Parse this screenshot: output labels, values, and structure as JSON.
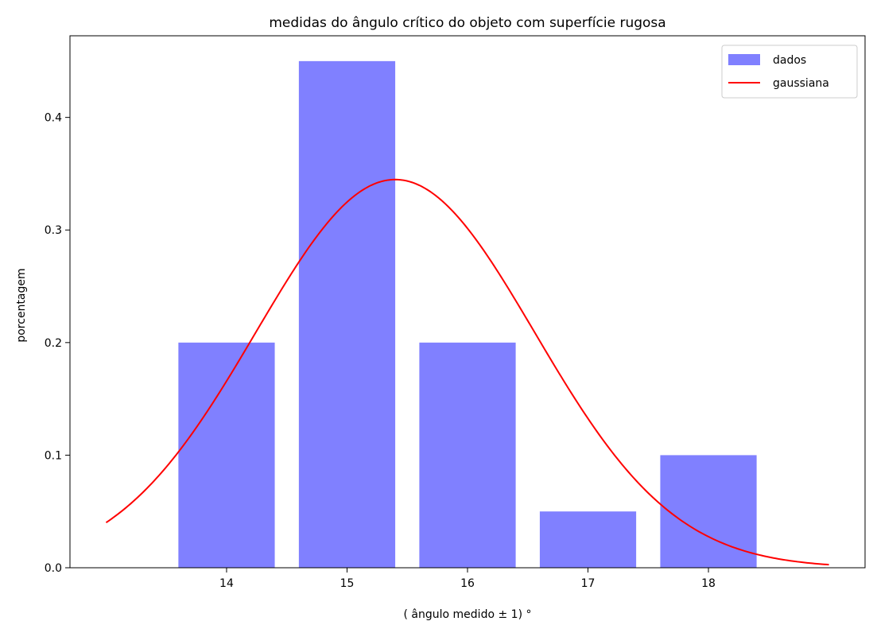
{
  "chart_data": {
    "type": "bar",
    "title": "medidas do ângulo crítico do objeto com superfície rugosa",
    "xlabel": "( ângulo medido ± 1) °",
    "ylabel": "porcentagem",
    "categories": [
      14,
      15,
      16,
      17,
      18
    ],
    "series": [
      {
        "name": "dados",
        "type": "bar",
        "color": "#8080ff",
        "values": [
          0.2,
          0.45,
          0.2,
          0.05,
          0.1
        ]
      },
      {
        "name": "gaussiana",
        "type": "line",
        "color": "#ff0000",
        "mean": 15.4,
        "std": 1.157,
        "x_range": [
          13,
          19
        ]
      }
    ],
    "xlim": [
      12.7,
      19.3
    ],
    "ylim": [
      0,
      0.4725
    ],
    "xticks": [
      14,
      15,
      16,
      17,
      18
    ],
    "yticks": [
      0.0,
      0.1,
      0.2,
      0.3,
      0.4
    ],
    "ytick_labels": [
      "0.0",
      "0.1",
      "0.2",
      "0.3",
      "0.4"
    ],
    "grid": false,
    "legend_position": "top-right"
  }
}
